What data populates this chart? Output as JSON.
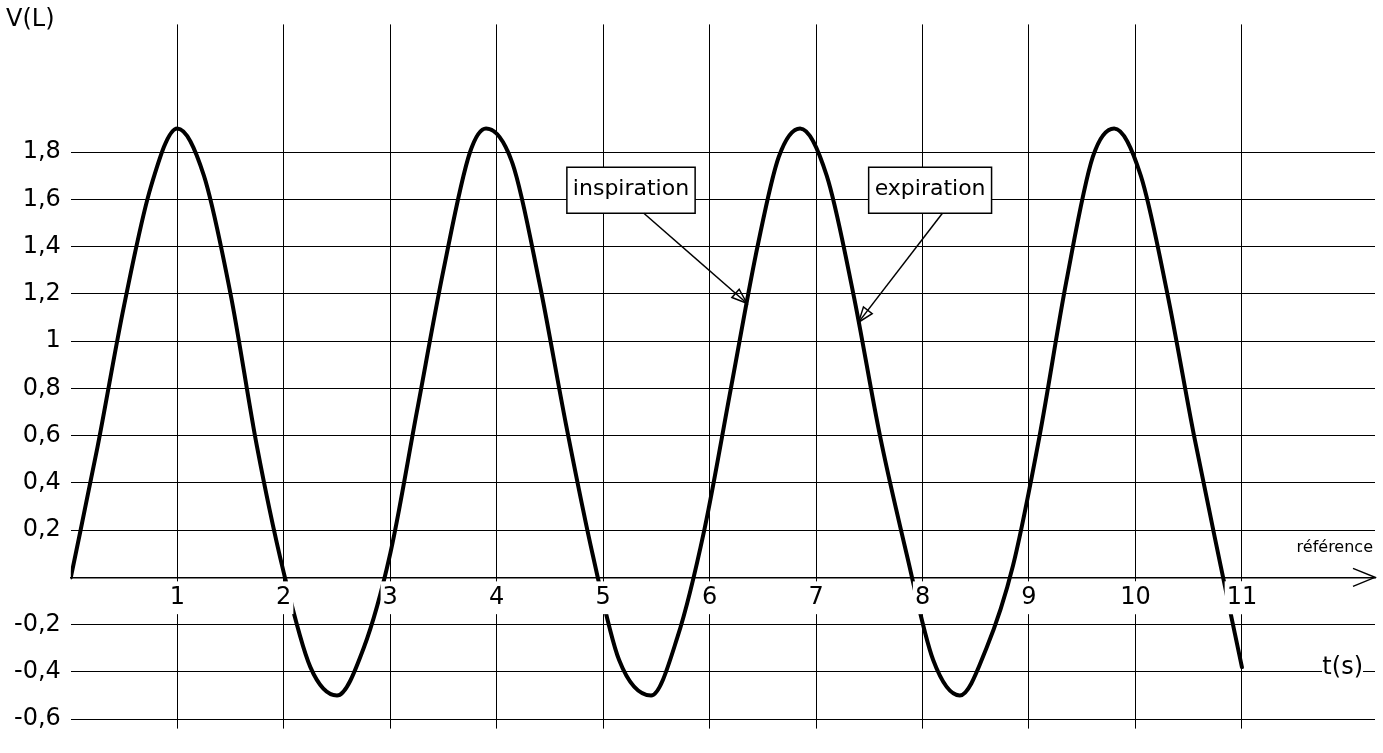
{
  "chart_data": {
    "type": "line",
    "xlabel": "t(s)",
    "ylabel": "V(L)",
    "xlim": [
      0,
      12.25
    ],
    "ylim": [
      -0.64,
      2.34
    ],
    "xticks": [
      1,
      2,
      3,
      4,
      5,
      6,
      7,
      8,
      9,
      10,
      11
    ],
    "yticks": [
      {
        "value": -0.6,
        "label": "-0,6"
      },
      {
        "value": -0.4,
        "label": "-0,4"
      },
      {
        "value": -0.2,
        "label": "-0,2"
      },
      {
        "value": 0,
        "label": null
      },
      {
        "value": 0.2,
        "label": "0,2"
      },
      {
        "value": 0.4,
        "label": "0,4"
      },
      {
        "value": 0.6,
        "label": "0,6"
      },
      {
        "value": 0.8,
        "label": "0,8"
      },
      {
        "value": 1,
        "label": "1"
      },
      {
        "value": 1.2,
        "label": "1,2"
      },
      {
        "value": 1.4,
        "label": "1,4"
      },
      {
        "value": 1.6,
        "label": "1,6"
      },
      {
        "value": 1.8,
        "label": "1,8"
      }
    ],
    "grid": true,
    "marker": "none",
    "line_style": "solid",
    "series": [
      {
        "color": "#000000",
        "x": [
          0,
          0.25,
          0.5,
          0.75,
          1,
          1.25,
          1.5,
          1.75,
          2,
          2.25,
          2.5,
          2.75,
          3,
          3.25,
          3.5,
          3.75,
          3.9,
          4.15,
          4.4,
          4.65,
          4.9,
          5.15,
          5.45,
          5.7,
          5.95,
          6.2,
          6.45,
          6.65,
          6.85,
          7.1,
          7.35,
          7.6,
          7.85,
          8.1,
          8.35,
          8.6,
          8.85,
          9.1,
          9.35,
          9.6,
          9.8,
          10.05,
          10.3,
          10.55,
          10.8,
          11
        ],
        "values": [
          0,
          0.55,
          1.15,
          1.65,
          1.9,
          1.7,
          1.2,
          0.55,
          0.02,
          -0.38,
          -0.5,
          -0.3,
          0.1,
          0.7,
          1.3,
          1.8,
          1.9,
          1.75,
          1.25,
          0.65,
          0.1,
          -0.35,
          -0.5,
          -0.25,
          0.2,
          0.8,
          1.4,
          1.78,
          1.9,
          1.7,
          1.2,
          0.6,
          0.1,
          -0.35,
          -0.5,
          -0.3,
          0.05,
          0.6,
          1.25,
          1.78,
          1.9,
          1.7,
          1.2,
          0.6,
          0.05,
          -0.38
        ]
      }
    ],
    "annotations": [
      {
        "text": "inspiration",
        "x": 6.35,
        "y": 1.16
      },
      {
        "text": "expiration",
        "x": 7.4,
        "y": 1.08
      },
      "référence"
    ]
  }
}
